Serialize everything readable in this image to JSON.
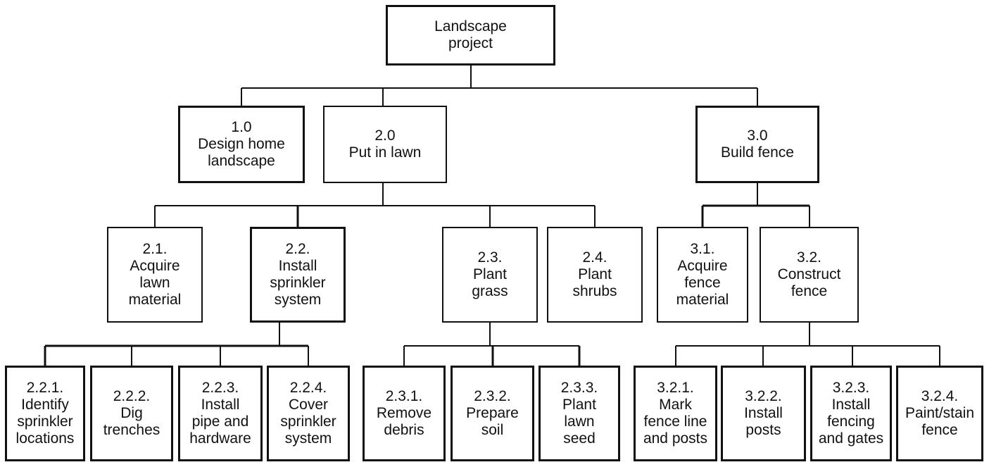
{
  "nodes": {
    "root": "Landscape\nproject",
    "n1_0": "1.0\nDesign home\nlandscape",
    "n2_0": "2.0\nPut in lawn",
    "n3_0": "3.0\nBuild fence",
    "n2_1": "2.1.\nAcquire\nlawn\nmaterial",
    "n2_2": "2.2.\nInstall\nsprinkler\nsystem",
    "n2_3": "2.3.\nPlant\ngrass",
    "n2_4": "2.4.\nPlant\nshrubs",
    "n3_1": "3.1.\nAcquire\nfence\nmaterial",
    "n3_2": "3.2.\nConstruct\nfence",
    "n2_2_1": "2.2.1.\nIdentify\nsprinkler\nlocations",
    "n2_2_2": "2.2.2.\nDig\ntrenches",
    "n2_2_3": "2.2.3.\nInstall\npipe and\nhardware",
    "n2_2_4": "2.2.4.\nCover\nsprinkler\nsystem",
    "n2_3_1": "2.3.1.\nRemove\ndebris",
    "n2_3_2": "2.3.2.\nPrepare\nsoil",
    "n2_3_3": "2.3.3.\nPlant\nlawn\nseed",
    "n3_2_1": "3.2.1.\nMark\nfence line\nand posts",
    "n3_2_2": "3.2.2.\nInstall\nposts",
    "n3_2_3": "3.2.3.\nInstall\nfencing\nand gates",
    "n3_2_4": "3.2.4.\nPaint/stain\nfence"
  }
}
